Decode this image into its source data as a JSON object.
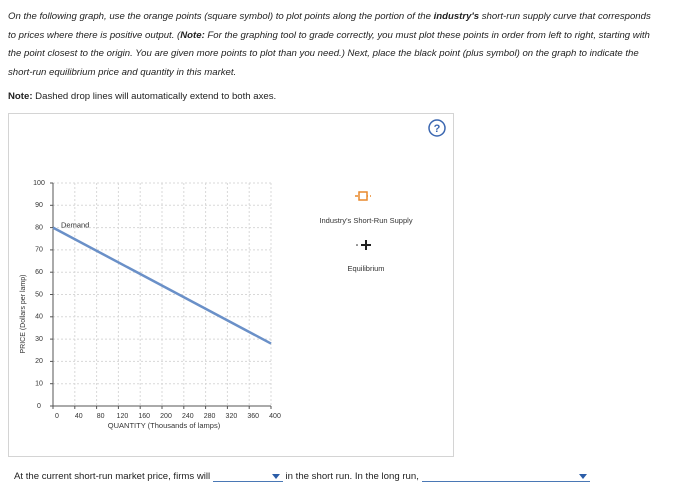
{
  "instructions": [
    "On the following graph, use the orange points (square symbol) to plot points along the portion of the ",
    "industry's",
    " short-run supply curve that corresponds to prices where there is positive output. (",
    "Note:",
    " For the graphing tool to grade correctly, you must plot these points in order from left to right, starting with the point closest to the origin. You are given more points to plot than you need.) Next, place the black point (plus symbol) on the graph to indicate the short-run equilibrium price and quantity in this market."
  ],
  "note": [
    "Note:",
    " Dashed drop lines will automatically extend to both axes."
  ],
  "question": [
    "At the current short-run market price, firms will",
    "in the short run. In the long run,"
  ],
  "chart_data": {
    "type": "line",
    "xlabel": "QUANTITY (Thousands of lamps)",
    "ylabel": "PRICE (Dollars per lamp)",
    "x": [
      0,
      400
    ],
    "series": [
      {
        "name": "Demand",
        "color": "#6a90c8",
        "values": [
          80,
          28
        ]
      }
    ],
    "xlim": [
      0,
      400
    ],
    "ylim": [
      0,
      100
    ],
    "xticks": [
      0,
      40,
      80,
      120,
      160,
      200,
      240,
      280,
      320,
      360,
      400
    ],
    "yticks": [
      0,
      10,
      20,
      30,
      40,
      50,
      60,
      70,
      80,
      90,
      100
    ],
    "grid": true,
    "tools": [
      {
        "label": "Industry's Short-Run Supply",
        "color": "#e8892c"
      },
      {
        "label": "Equilibrium",
        "color": "#222222"
      }
    ]
  }
}
